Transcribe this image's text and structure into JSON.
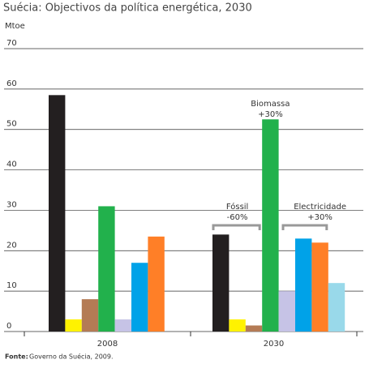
{
  "chart_data": {
    "type": "bar",
    "title": "Suécia: Objectivos da política energética, 2030",
    "y_label": "Mtoe",
    "categories": [
      "2008",
      "2030"
    ],
    "series": [
      {
        "color": "#231f20",
        "values": [
          58.5,
          24
        ]
      },
      {
        "color": "#fff200",
        "values": [
          3,
          3
        ]
      },
      {
        "color": "#b47b55",
        "values": [
          8,
          1.5
        ]
      },
      {
        "color": "#22b14c",
        "values": [
          31,
          52.5
        ]
      },
      {
        "color": "#c6c3e6",
        "values": [
          3,
          10
        ]
      },
      {
        "color": "#00a2e8",
        "values": [
          17,
          23
        ]
      },
      {
        "color": "#ff7f27",
        "values": [
          23.5,
          22
        ]
      },
      {
        "color": "#99d9ea",
        "values": [
          null,
          12
        ]
      }
    ],
    "ylim": [
      0,
      70
    ],
    "yticks": [
      0,
      10,
      20,
      30,
      40,
      50,
      60,
      70
    ],
    "grid": true,
    "annotations": [
      {
        "label": "Biomassa",
        "change": "+30%"
      },
      {
        "label": "Fóssil",
        "change": "-60%"
      },
      {
        "label": "Electricidade",
        "change": "+30%"
      }
    ],
    "source_label": "Fonte:",
    "source": "Governo da Suécia, 2009."
  }
}
